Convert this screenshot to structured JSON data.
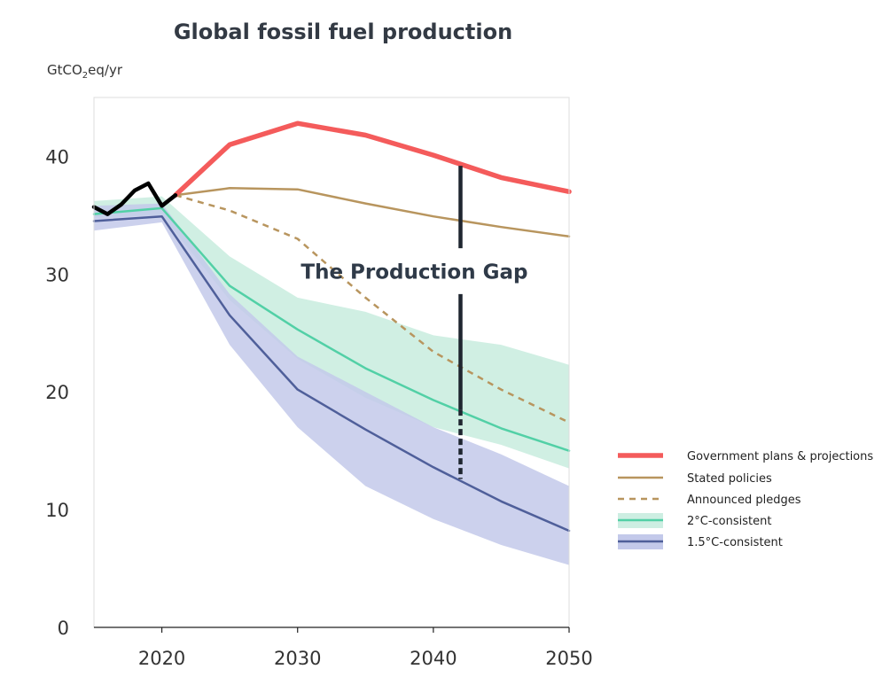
{
  "chart_data": {
    "type": "line",
    "title": "Global fossil fuel production",
    "ylabel_prefix": "GtCO",
    "ylabel_sub": "2",
    "ylabel_suffix": "eq/yr",
    "xlim": [
      2015,
      2050
    ],
    "ylim": [
      0,
      45
    ],
    "xticks": [
      "2020",
      "2030",
      "2040",
      "2050"
    ],
    "yticks": [
      "0",
      "10",
      "20",
      "30",
      "40"
    ],
    "historical": {
      "color": "#000000",
      "x": [
        2015,
        2016,
        2017,
        2018,
        2019,
        2020,
        2021
      ],
      "y": [
        35.7,
        35.1,
        35.9,
        37.1,
        37.7,
        35.8,
        36.7
      ]
    },
    "series": [
      {
        "name": "Government plans & projections",
        "color": "#f45b5b",
        "style": "solid-thick",
        "x": [
          2021,
          2025,
          2030,
          2035,
          2040,
          2045,
          2050
        ],
        "y": [
          36.7,
          41.0,
          42.8,
          41.8,
          40.1,
          38.2,
          37.0
        ]
      },
      {
        "name": "Stated policies",
        "color": "#b8955e",
        "style": "solid",
        "x": [
          2021,
          2025,
          2030,
          2035,
          2040,
          2045,
          2050
        ],
        "y": [
          36.7,
          37.3,
          37.2,
          36.0,
          34.9,
          34.0,
          33.2
        ]
      },
      {
        "name": "Announced pledges",
        "color": "#b8955e",
        "style": "dashed",
        "x": [
          2021,
          2025,
          2030,
          2035,
          2040,
          2045,
          2050
        ],
        "y": [
          36.7,
          35.4,
          33.0,
          28.0,
          23.4,
          20.2,
          17.4
        ]
      },
      {
        "name": "2°C-consistent",
        "color": "#52d0a6",
        "band_color": "#cdeee2",
        "style": "solid-band",
        "x": [
          2015,
          2020,
          2025,
          2030,
          2035,
          2040,
          2045,
          2050
        ],
        "y": [
          35.1,
          35.6,
          29.0,
          25.3,
          22.0,
          19.3,
          16.9,
          15.0
        ],
        "band_low": [
          34.8,
          35.0,
          27.8,
          22.8,
          19.5,
          17.0,
          15.5,
          13.5
        ],
        "band_high": [
          36.2,
          36.6,
          31.5,
          28.0,
          26.8,
          24.8,
          24.0,
          22.3
        ]
      },
      {
        "name": "1.5°C-consistent",
        "color": "#4f5f9a",
        "band_color": "#c3c9ea",
        "style": "solid-band",
        "x": [
          2015,
          2020,
          2025,
          2030,
          2035,
          2040,
          2045,
          2050
        ],
        "y": [
          34.5,
          34.9,
          26.5,
          20.2,
          16.8,
          13.6,
          10.7,
          8.2
        ],
        "band_low": [
          33.7,
          34.4,
          24.0,
          17.0,
          12.0,
          9.2,
          7.0,
          5.3
        ],
        "band_high": [
          35.8,
          36.0,
          28.3,
          23.0,
          20.0,
          17.0,
          14.7,
          12.0
        ]
      }
    ],
    "annotation": {
      "text": "The Production Gap",
      "x": 2042,
      "y_top": 39.2,
      "y_bottom": 12.6
    },
    "legend_position": "right",
    "grid": false
  }
}
